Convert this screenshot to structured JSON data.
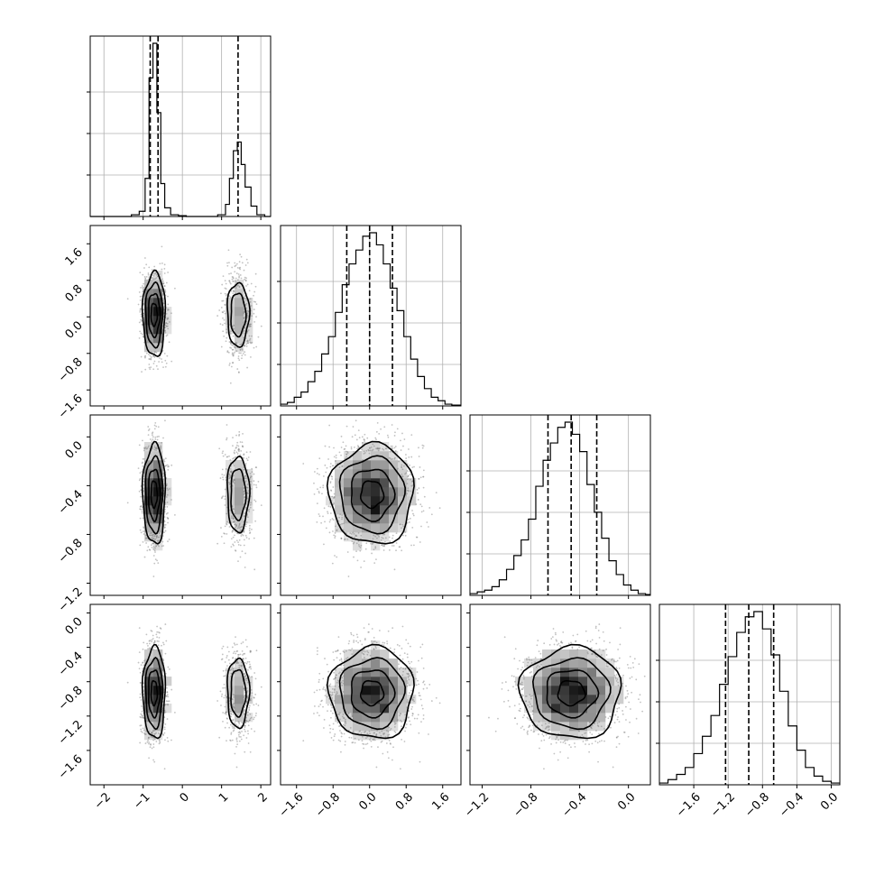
{
  "chart_data": {
    "type": "corner",
    "parameters": [
      {
        "index": 0,
        "ticks": [
          -2,
          -1,
          0,
          1,
          2
        ],
        "tick_labels": [
          "−2",
          "−1",
          "0",
          "1",
          "2"
        ],
        "range": [
          -2.35,
          2.25
        ],
        "quantiles": [
          -0.82,
          -0.62,
          1.42
        ],
        "hist_peak": 1.0,
        "show_grid": true
      },
      {
        "index": 1,
        "ticks": [
          -1.6,
          -0.8,
          0.0,
          0.8,
          1.6
        ],
        "tick_labels": [
          "−1.6",
          "−0.8",
          "0.0",
          "0.8",
          "1.6"
        ],
        "range": [
          -1.95,
          2.0
        ],
        "quantiles": [
          -0.5,
          0.0,
          0.5
        ],
        "hist_peak": 1.0,
        "show_grid": true
      },
      {
        "index": 2,
        "ticks": [
          -1.2,
          -0.8,
          -0.4,
          0.0
        ],
        "tick_labels": [
          "−1.2",
          "−0.8",
          "−0.4",
          "0.0"
        ],
        "range": [
          -1.3,
          0.18
        ],
        "quantiles": [
          -0.66,
          -0.47,
          -0.26
        ],
        "hist_peak": 1.0,
        "show_grid": true
      },
      {
        "index": 3,
        "ticks": [
          -1.6,
          -1.2,
          -0.8,
          -0.4,
          0.0
        ],
        "tick_labels": [
          "−1.6",
          "−1.2",
          "−0.8",
          "−0.4",
          "0.0"
        ],
        "range": [
          -2.0,
          0.1
        ],
        "quantiles": [
          -1.23,
          -0.96,
          -0.67
        ],
        "hist_peak": 1.0,
        "show_grid": true
      }
    ],
    "marginal_histograms": [
      {
        "param": 0,
        "bins": [
          -2.35,
          -2.1,
          -1.9,
          -1.7,
          -1.5,
          -1.3,
          -1.1,
          -0.95,
          -0.85,
          -0.75,
          -0.65,
          -0.55,
          -0.45,
          -0.3,
          -0.1,
          0.1,
          0.3,
          0.5,
          0.7,
          0.9,
          1.1,
          1.2,
          1.3,
          1.4,
          1.5,
          1.6,
          1.75,
          1.9,
          2.1,
          2.25
        ],
        "counts": [
          0,
          0,
          0,
          0,
          0,
          0.01,
          0.03,
          0.22,
          0.8,
          1.0,
          0.6,
          0.19,
          0.05,
          0.01,
          0.005,
          0,
          0,
          0,
          0,
          0.01,
          0.07,
          0.22,
          0.38,
          0.43,
          0.3,
          0.17,
          0.06,
          0.01,
          0
        ]
      },
      {
        "param": 1,
        "bins": [
          -1.95,
          -1.8,
          -1.65,
          -1.5,
          -1.35,
          -1.2,
          -1.05,
          -0.9,
          -0.75,
          -0.6,
          -0.45,
          -0.3,
          -0.15,
          0.0,
          0.15,
          0.3,
          0.45,
          0.6,
          0.75,
          0.9,
          1.05,
          1.2,
          1.35,
          1.5,
          1.65,
          1.8,
          2.0
        ],
        "counts": [
          0.01,
          0.02,
          0.05,
          0.08,
          0.14,
          0.2,
          0.3,
          0.4,
          0.54,
          0.7,
          0.82,
          0.9,
          0.98,
          1.0,
          0.93,
          0.82,
          0.68,
          0.55,
          0.4,
          0.27,
          0.17,
          0.1,
          0.05,
          0.03,
          0.01,
          0.005
        ]
      },
      {
        "param": 2,
        "bins": [
          -1.3,
          -1.24,
          -1.18,
          -1.12,
          -1.06,
          -1.0,
          -0.94,
          -0.88,
          -0.82,
          -0.76,
          -0.7,
          -0.64,
          -0.58,
          -0.52,
          -0.46,
          -0.4,
          -0.34,
          -0.28,
          -0.22,
          -0.16,
          -0.1,
          -0.04,
          0.02,
          0.08,
          0.14,
          0.18
        ],
        "counts": [
          0.01,
          0.02,
          0.03,
          0.05,
          0.09,
          0.15,
          0.23,
          0.32,
          0.44,
          0.63,
          0.78,
          0.88,
          0.97,
          1.0,
          0.93,
          0.83,
          0.64,
          0.48,
          0.33,
          0.2,
          0.12,
          0.06,
          0.03,
          0.01,
          0.005
        ]
      },
      {
        "param": 3,
        "bins": [
          -2.0,
          -1.9,
          -1.8,
          -1.7,
          -1.6,
          -1.5,
          -1.4,
          -1.3,
          -1.2,
          -1.1,
          -1.0,
          -0.9,
          -0.8,
          -0.7,
          -0.6,
          -0.5,
          -0.4,
          -0.3,
          -0.2,
          -0.1,
          0.0,
          0.1
        ],
        "counts": [
          0.01,
          0.03,
          0.06,
          0.1,
          0.18,
          0.28,
          0.4,
          0.58,
          0.74,
          0.88,
          0.97,
          1.0,
          0.9,
          0.75,
          0.54,
          0.34,
          0.2,
          0.1,
          0.05,
          0.02,
          0.01
        ]
      }
    ],
    "modes": [
      {
        "x0": -0.72,
        "sx0": 0.14,
        "weight": 0.7
      },
      {
        "x0": 1.42,
        "sx0": 0.18,
        "weight": 0.3
      }
    ],
    "joint": {
      "p1": {
        "mean": 0.05,
        "sd": 0.45
      },
      "p2": {
        "mean": -0.47,
        "sd": 0.2
      },
      "p3": {
        "mean": -0.93,
        "sd": 0.26
      }
    }
  }
}
